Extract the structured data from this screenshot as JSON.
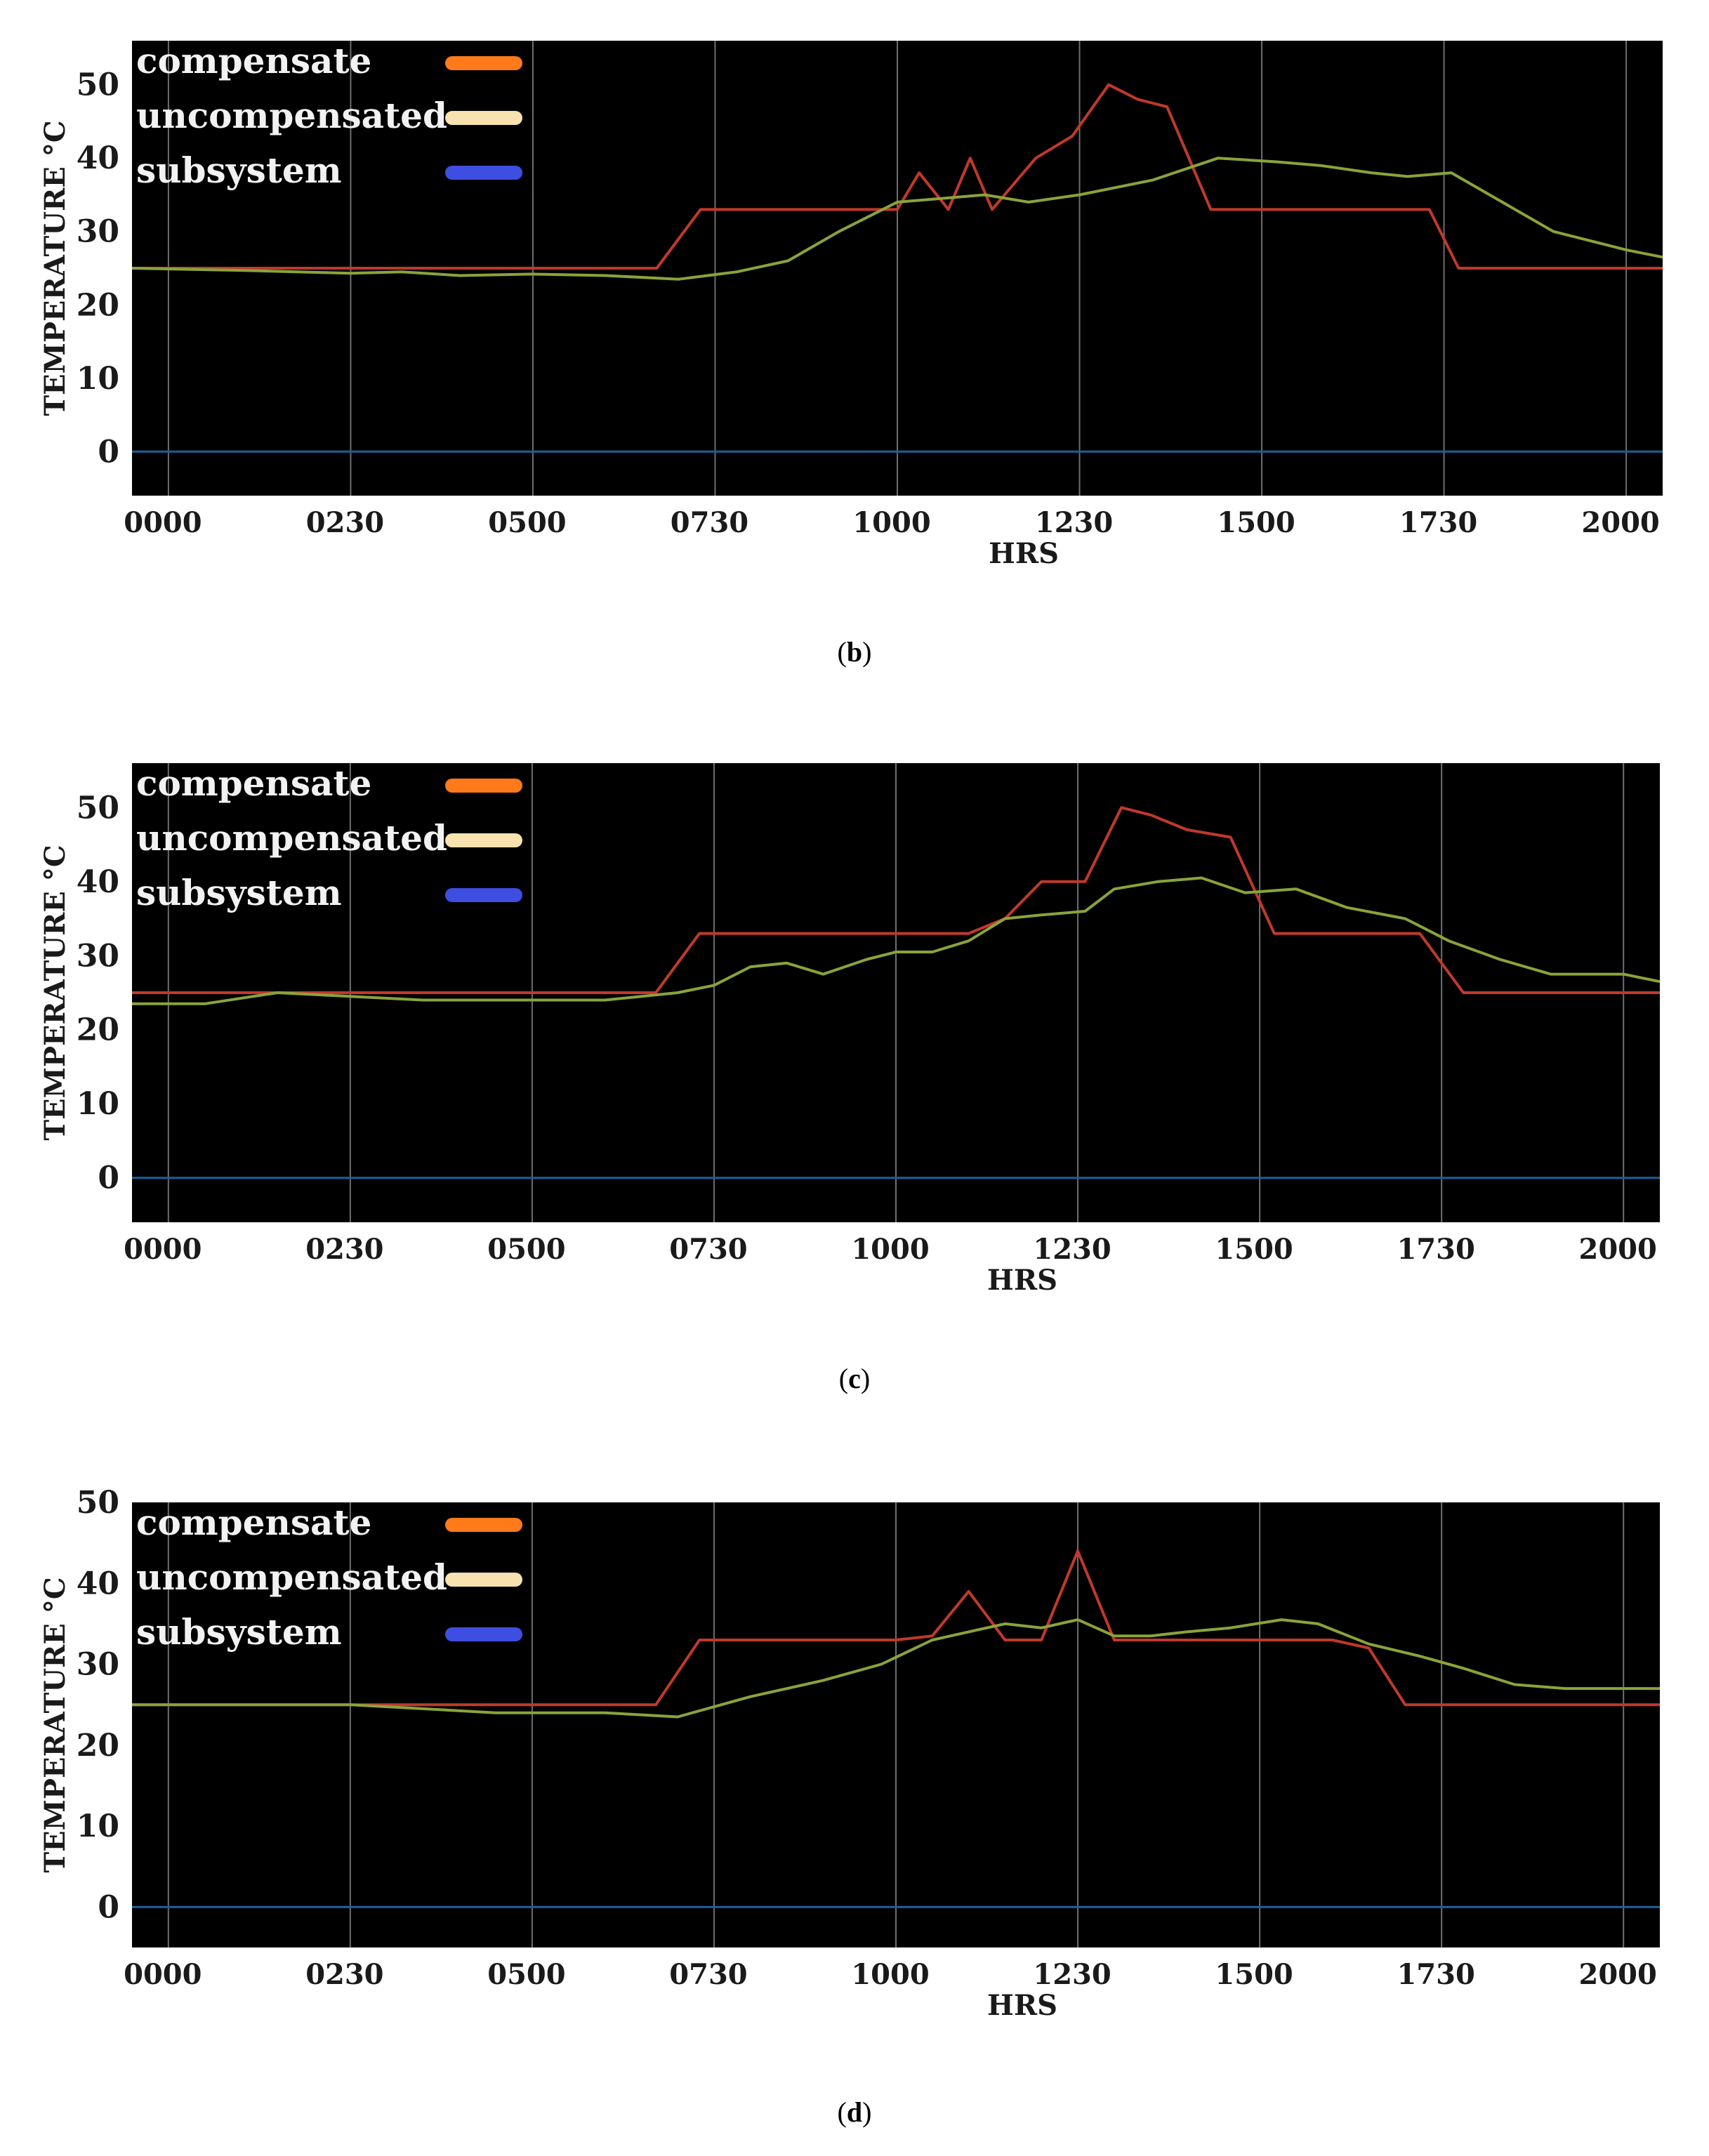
{
  "chart_data": [
    {
      "panel": "b",
      "type": "line",
      "caption_letter": "b",
      "xlabel": "HRS",
      "ylabel": "TEMPERATURE °C",
      "xticks": [
        0,
        2.5,
        5,
        7.5,
        10,
        12.5,
        15,
        17.5,
        20
      ],
      "xtick_labels": [
        "0000",
        "0230",
        "0500",
        "0730",
        "1000",
        "1230",
        "1500",
        "1730",
        "2000"
      ],
      "yticks": [
        0,
        10,
        20,
        30,
        40,
        50
      ],
      "xlim": [
        -0.5,
        20.5
      ],
      "ylim": [
        -6,
        56
      ],
      "grid": true,
      "legend_position": "top-left",
      "legend": [
        {
          "label": "compensate",
          "color": "#ff7a1a"
        },
        {
          "label": "uncompensated",
          "color": "#f7e2b0"
        },
        {
          "label": "subsystem",
          "color": "#3e4ee0"
        }
      ],
      "series": [
        {
          "name": "compensate",
          "color": "#c0392b",
          "x": [
            -0.5,
            6.7,
            7.3,
            9.6,
            10.0,
            10.3,
            10.7,
            11.0,
            11.3,
            11.9,
            12.4,
            12.9,
            13.3,
            13.7,
            14.3,
            15.0,
            17.3,
            17.7,
            20.5
          ],
          "y": [
            25,
            25,
            33,
            33,
            33,
            38,
            33,
            40,
            33,
            40,
            43,
            50,
            48,
            47,
            33,
            33,
            33,
            25,
            25
          ]
        },
        {
          "name": "uncompensated",
          "color": "#8aa33a",
          "x": [
            -0.5,
            1.0,
            2.5,
            3.2,
            4.0,
            5.0,
            6.0,
            7.0,
            7.8,
            8.5,
            9.2,
            10.0,
            10.6,
            11.2,
            11.8,
            12.5,
            13.5,
            14.4,
            15.2,
            15.8,
            16.5,
            17.0,
            17.6,
            18.3,
            19.0,
            20.0,
            20.5
          ],
          "y": [
            25,
            24.7,
            24.3,
            24.5,
            24,
            24.2,
            24,
            23.5,
            24.5,
            26,
            30,
            34,
            34.5,
            35,
            34,
            35,
            37,
            40,
            39.5,
            39,
            38,
            37.5,
            38,
            34,
            30,
            27.5,
            26.5
          ]
        },
        {
          "name": "subsystem",
          "color": "#1a5fa0",
          "x": [
            -0.5,
            20.5
          ],
          "y": [
            0,
            0
          ]
        }
      ]
    },
    {
      "panel": "c",
      "type": "line",
      "caption_letter": "c",
      "xlabel": "HRS",
      "ylabel": "TEMPERATURE °C",
      "xticks": [
        0,
        2.5,
        5,
        7.5,
        10,
        12.5,
        15,
        17.5,
        20
      ],
      "xtick_labels": [
        "0000",
        "0230",
        "0500",
        "0730",
        "1000",
        "1230",
        "1500",
        "1730",
        "2000"
      ],
      "yticks": [
        0,
        10,
        20,
        30,
        40,
        50
      ],
      "xlim": [
        -0.5,
        20.5
      ],
      "ylim": [
        -6,
        56
      ],
      "grid": true,
      "legend_position": "top-left",
      "legend": [
        {
          "label": "compensate",
          "color": "#ff7a1a"
        },
        {
          "label": "uncompensated",
          "color": "#f7e2b0"
        },
        {
          "label": "subsystem",
          "color": "#3e4ee0"
        }
      ],
      "series": [
        {
          "name": "compensate",
          "color": "#c0392b",
          "x": [
            -0.5,
            6.7,
            7.3,
            10.0,
            11.0,
            11.5,
            12.0,
            12.6,
            13.1,
            13.5,
            14.0,
            14.6,
            15.2,
            16.5,
            17.2,
            17.8,
            20.5
          ],
          "y": [
            25,
            25,
            33,
            33,
            33,
            35,
            40,
            40,
            50,
            49,
            47,
            46,
            33,
            33,
            33,
            25,
            25
          ]
        },
        {
          "name": "uncompensated",
          "color": "#8aa33a",
          "x": [
            -0.5,
            0.5,
            1.5,
            2.5,
            3.5,
            5.0,
            6.0,
            7.0,
            7.5,
            8.0,
            8.5,
            9.0,
            9.6,
            10.0,
            10.5,
            11.0,
            11.5,
            12.0,
            12.6,
            13.0,
            13.6,
            14.2,
            14.8,
            15.5,
            16.2,
            17.0,
            17.6,
            18.3,
            19.0,
            20.0,
            20.5
          ],
          "y": [
            23.5,
            23.5,
            25,
            24.5,
            24,
            24,
            24,
            25,
            26,
            28.5,
            29,
            27.5,
            29.5,
            30.5,
            30.5,
            32,
            35,
            35.5,
            36,
            39,
            40,
            40.5,
            38.5,
            39,
            36.5,
            35,
            32,
            29.5,
            27.5,
            27.5,
            26.5
          ]
        },
        {
          "name": "subsystem",
          "color": "#1a5fa0",
          "x": [
            -0.5,
            20.5
          ],
          "y": [
            0,
            0
          ]
        }
      ]
    },
    {
      "panel": "d",
      "type": "line",
      "caption_letter": "d",
      "xlabel": "HRS",
      "ylabel": "TEMPERATURE °C",
      "xticks": [
        0,
        2.5,
        5,
        7.5,
        10,
        12.5,
        15,
        17.5,
        20
      ],
      "xtick_labels": [
        "0000",
        "0230",
        "0500",
        "0730",
        "1000",
        "1230",
        "1500",
        "1730",
        "2000"
      ],
      "yticks": [
        0,
        10,
        20,
        30,
        40,
        50
      ],
      "xlim": [
        -0.5,
        20.5
      ],
      "ylim": [
        -5,
        50
      ],
      "grid": true,
      "legend_position": "top-left",
      "legend": [
        {
          "label": "compensate",
          "color": "#ff7a1a"
        },
        {
          "label": "uncompensated",
          "color": "#f7e2b0"
        },
        {
          "label": "subsystem",
          "color": "#3e4ee0"
        }
      ],
      "series": [
        {
          "name": "compensate",
          "color": "#c0392b",
          "x": [
            -0.5,
            6.7,
            7.3,
            10.0,
            10.5,
            11.0,
            11.5,
            12.0,
            12.5,
            13.0,
            16.0,
            16.5,
            17.0,
            20.5
          ],
          "y": [
            25,
            25,
            33,
            33,
            33.5,
            39,
            33,
            33,
            44,
            33,
            33,
            32,
            25,
            25
          ]
        },
        {
          "name": "uncompensated",
          "color": "#8aa33a",
          "x": [
            -0.5,
            2.5,
            4.5,
            6.0,
            7.0,
            8.0,
            9.0,
            9.8,
            10.5,
            11.0,
            11.5,
            12.0,
            12.5,
            13.0,
            13.5,
            14.0,
            14.6,
            15.3,
            15.8,
            16.5,
            17.2,
            17.8,
            18.5,
            19.2,
            20.0,
            20.5
          ],
          "y": [
            25,
            25,
            24,
            24,
            23.5,
            26,
            28,
            30,
            33,
            34,
            35,
            34.5,
            35.5,
            33.5,
            33.5,
            34,
            34.5,
            35.5,
            35,
            32.5,
            31,
            29.5,
            27.5,
            27,
            27,
            27
          ]
        },
        {
          "name": "subsystem",
          "color": "#1a5fa0",
          "x": [
            -0.5,
            20.5
          ],
          "y": [
            0,
            0
          ]
        }
      ]
    }
  ]
}
